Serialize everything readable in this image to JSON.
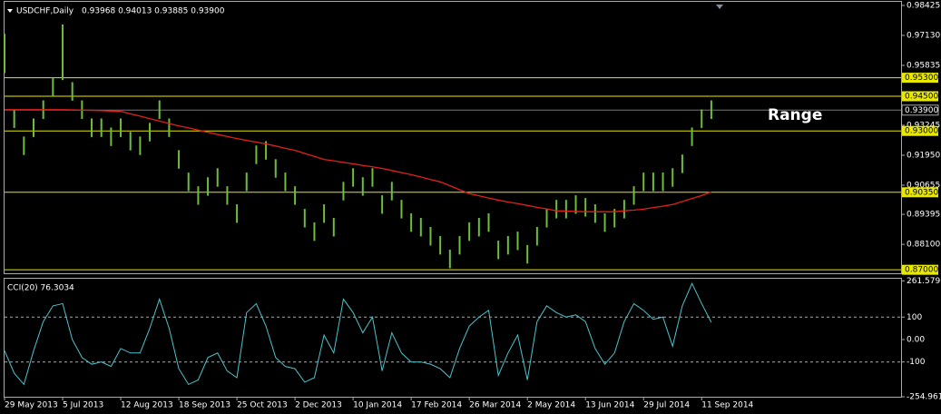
{
  "chart_data": [
    {
      "type": "ohlc",
      "title": "USDCHF,Daily",
      "quote": "0.93968 0.94013 0.93885 0.93900",
      "color": "#6cbf3a",
      "ylim": [
        0.8681,
        0.9862
      ],
      "yticks": [
        0.98425,
        {
          "value": 0.9713,
          "label": "0.97130"
        },
        0.95835,
        0.93245,
        {
          "value": 0.9195,
          "label": "0.91950"
        },
        0.90655,
        0.89395,
        {
          "value": 0.881,
          "label": "0.88100"
        }
      ],
      "high": [
        0.972,
        0.9393,
        0.9276,
        0.9354,
        0.9432,
        0.953,
        0.976,
        0.9511,
        0.9432,
        0.9354,
        0.9354,
        0.9315,
        0.9354,
        0.9296,
        0.9276,
        0.9335,
        0.9432,
        0.9354,
        0.9217,
        0.912,
        0.9061,
        0.91,
        0.9139,
        0.9061,
        0.8983,
        0.912,
        0.9237,
        0.9256,
        0.9178,
        0.912,
        0.9061,
        0.8963,
        0.8905,
        0.8983,
        0.8924,
        0.908,
        0.9139,
        0.91,
        0.9139,
        0.9022,
        0.908,
        0.9002,
        0.8944,
        0.8924,
        0.8885,
        0.8846,
        0.8787,
        0.8846,
        0.8905,
        0.8924,
        0.8944,
        0.8826,
        0.8846,
        0.8865,
        0.8807,
        0.8885,
        0.8963,
        0.9002,
        0.9002,
        0.9022,
        0.901,
        0.8983,
        0.8944,
        0.8963,
        0.9002,
        0.9061,
        0.912,
        0.912,
        0.912,
        0.9139,
        0.9198,
        0.9315,
        0.9393,
        0.9432
      ],
      "low": [
        0.955,
        0.9313,
        0.9196,
        0.9274,
        0.9352,
        0.945,
        0.952,
        0.9431,
        0.9352,
        0.9274,
        0.9274,
        0.9235,
        0.9274,
        0.9216,
        0.9196,
        0.9255,
        0.9352,
        0.9274,
        0.9137,
        0.904,
        0.8981,
        0.902,
        0.9059,
        0.8981,
        0.8903,
        0.904,
        0.9157,
        0.9176,
        0.9098,
        0.904,
        0.8981,
        0.8883,
        0.8825,
        0.8903,
        0.8844,
        0.9,
        0.9059,
        0.902,
        0.9059,
        0.8942,
        0.9,
        0.8922,
        0.8864,
        0.8844,
        0.8805,
        0.8766,
        0.8707,
        0.8766,
        0.8825,
        0.8844,
        0.8864,
        0.8746,
        0.8766,
        0.8785,
        0.8727,
        0.8805,
        0.8883,
        0.8922,
        0.8922,
        0.8942,
        0.893,
        0.8903,
        0.8864,
        0.8883,
        0.8922,
        0.8981,
        0.904,
        0.904,
        0.904,
        0.9059,
        0.9118,
        0.9235,
        0.9313,
        0.9352
      ],
      "ma": {
        "color": "#e0201c",
        "values": [
          0.9392,
          0.9392,
          0.9392,
          0.9392,
          0.9392,
          0.9392,
          0.9392,
          0.9391,
          0.939,
          0.9389,
          0.9388,
          0.9386,
          0.9385,
          0.9374,
          0.9364,
          0.9353,
          0.9343,
          0.9332,
          0.9322,
          0.9313,
          0.9304,
          0.9294,
          0.9285,
          0.9276,
          0.9267,
          0.9259,
          0.9252,
          0.9244,
          0.9235,
          0.9225,
          0.9216,
          0.9203,
          0.919,
          0.9177,
          0.9171,
          0.9164,
          0.9158,
          0.9151,
          0.9145,
          0.9138,
          0.9129,
          0.912,
          0.9111,
          0.9101,
          0.909,
          0.908,
          0.9063,
          0.9046,
          0.9029,
          0.902,
          0.901,
          0.9001,
          0.8993,
          0.8986,
          0.8978,
          0.897,
          0.8963,
          0.8955,
          0.8954,
          0.8952,
          0.8951,
          0.8951,
          0.8951,
          0.8951,
          0.8955,
          0.8958,
          0.8962,
          0.8969,
          0.8975,
          0.8982,
          0.8995,
          0.9008,
          0.9021,
          0.9037
        ]
      },
      "levels": [
        {
          "value": 0.953,
          "label": "0.95300"
        },
        {
          "value": 0.945,
          "label": "0.94500"
        },
        {
          "value": 0.93,
          "label": "0.93000"
        },
        {
          "value": 0.9035,
          "label": "0.90350"
        },
        {
          "value": 0.87,
          "label": "0.87000"
        }
      ],
      "level_color": "#e8e800",
      "current": {
        "value": 0.939,
        "label": "0.93900"
      },
      "annotation": "Range"
    },
    {
      "type": "line",
      "title": "CCI(20) 76.3034",
      "color": "#4cc4cc",
      "ylim": [
        -255,
        275
      ],
      "yticks": [
        261.5796,
        100,
        {
          "value": 0,
          "label": "0.00"
        },
        -100,
        -254.9616
      ],
      "levels": [
        100,
        -100
      ],
      "categories": [
        "29 May 2013",
        null,
        null,
        null,
        null,
        null,
        "5 Jul 2013",
        null,
        null,
        null,
        null,
        null,
        "12 Aug 2013",
        null,
        null,
        null,
        null,
        null,
        "18 Sep 2013",
        null,
        null,
        null,
        null,
        null,
        "25 Oct 2013",
        null,
        null,
        null,
        null,
        null,
        "2 Dec 2013",
        null,
        null,
        null,
        null,
        null,
        "10 Jan 2014",
        null,
        null,
        null,
        null,
        null,
        "17 Feb 2014",
        null,
        null,
        null,
        null,
        null,
        "26 Mar 2014",
        null,
        null,
        null,
        null,
        null,
        "2 May 2014",
        null,
        null,
        null,
        null,
        null,
        "13 Jun 2014",
        null,
        null,
        null,
        null,
        null,
        "29 Jul 2014",
        null,
        null,
        null,
        null,
        null,
        "11 Sep 2014",
        null
      ],
      "values": [
        -50,
        -150,
        -200,
        -50,
        80,
        150,
        160,
        0,
        -80,
        -110,
        -100,
        -120,
        -40,
        -60,
        -60,
        50,
        180,
        50,
        -130,
        -200,
        -180,
        -80,
        -60,
        -140,
        -170,
        120,
        160,
        60,
        -80,
        -120,
        -130,
        -190,
        -170,
        20,
        -60,
        180,
        120,
        30,
        100,
        -140,
        30,
        -60,
        -100,
        -100,
        -110,
        -130,
        -170,
        -40,
        60,
        100,
        130,
        -160,
        -60,
        20,
        -180,
        80,
        150,
        120,
        100,
        110,
        80,
        -40,
        -110,
        -60,
        80,
        160,
        130,
        90,
        100,
        -30,
        150,
        250,
        160,
        76.3
      ]
    }
  ]
}
